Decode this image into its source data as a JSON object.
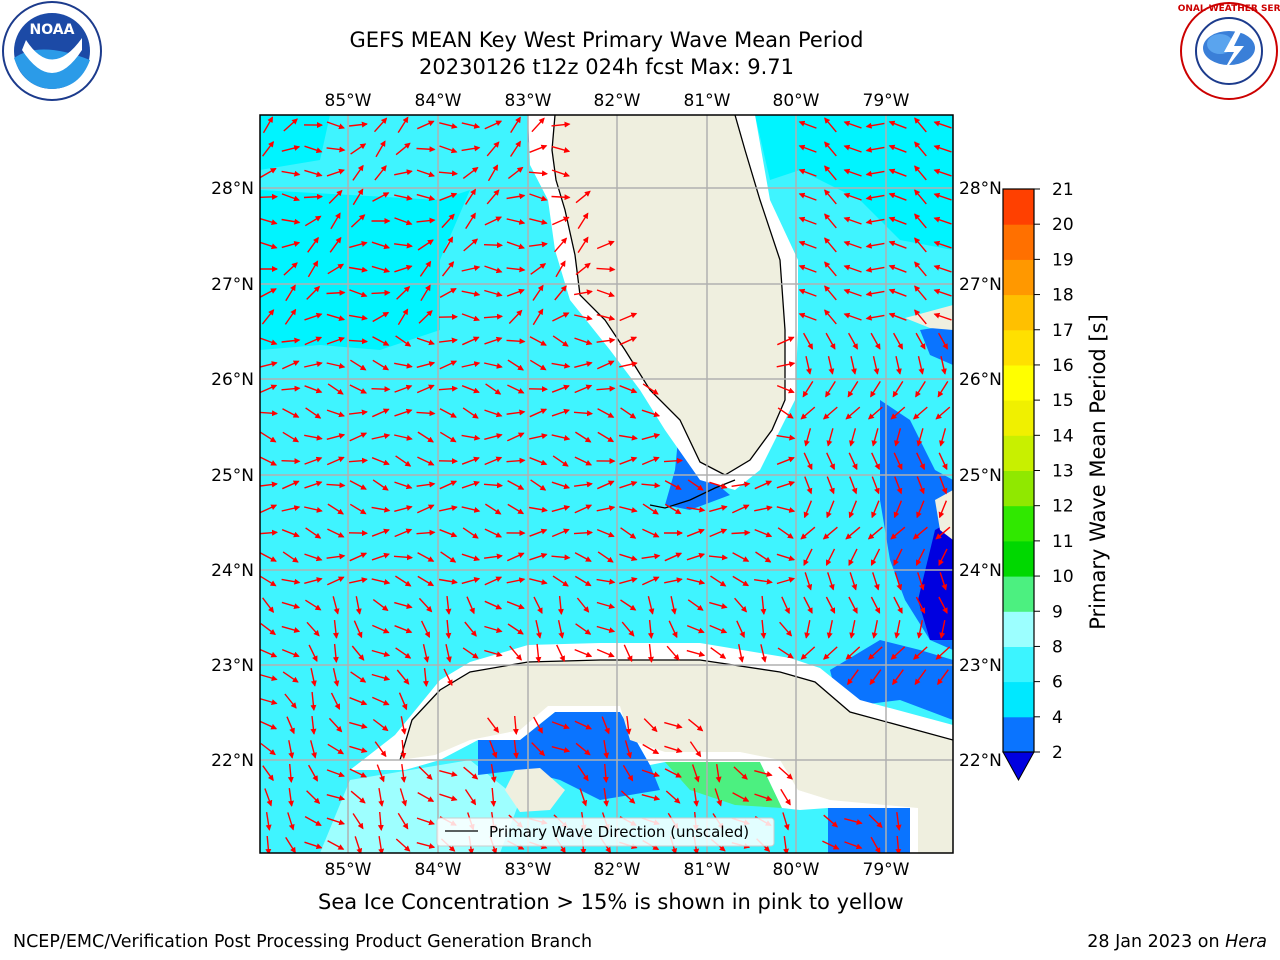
{
  "title_line1": "GEFS MEAN Key West Primary Wave Mean Period",
  "title_line2": "20230126 t12z 024h fcst   Max: 9.71",
  "legend_label": "Primary Wave Direction (unscaled)",
  "colorbar": {
    "label": "Primary Wave Mean Period [s]",
    "ticks": [
      "2",
      "4",
      "6",
      "8",
      "9",
      "10",
      "11",
      "12",
      "13",
      "14",
      "15",
      "16",
      "17",
      "18",
      "19",
      "20",
      "21"
    ],
    "colors": [
      "#0a74ff",
      "#00e8ff",
      "#3cf4ff",
      "#9cffff",
      "#4cf080",
      "#00d800",
      "#30e800",
      "#90e800",
      "#c8f000",
      "#f0f000",
      "#ffff00",
      "#ffe000",
      "#ffc000",
      "#ff9800",
      "#ff7000",
      "#ff4000",
      "#ff0000"
    ],
    "under_color": "#0000e0"
  },
  "axes": {
    "lon_labels": [
      "85°W",
      "84°W",
      "83°W",
      "82°W",
      "81°W",
      "80°W",
      "79°W"
    ],
    "lat_labels": [
      "28°N",
      "27°N",
      "26°N",
      "25°N",
      "24°N",
      "23°N",
      "22°N"
    ]
  },
  "colors": {
    "ocean": "#3ff4ff",
    "ocean_cyan": "#00f4ff",
    "light": "#9effff",
    "blue": "#0a74ff",
    "dark": "#0000e0",
    "green": "#4cf080",
    "land": "#efefdf",
    "arrow": "#ff0000",
    "grid": "#b0b0b0"
  },
  "footer_note": "Sea Ice Concentration > 15% is shown in pink to yellow",
  "credit": "NCEP/EMC/Verification Post Processing Product Generation Branch",
  "date_text": "28 Jan 2023 on ",
  "date_host": "Hera",
  "logos": {
    "noaa_text": "NOAA",
    "nws_text": "NATIONAL WEATHER SERVICE"
  }
}
